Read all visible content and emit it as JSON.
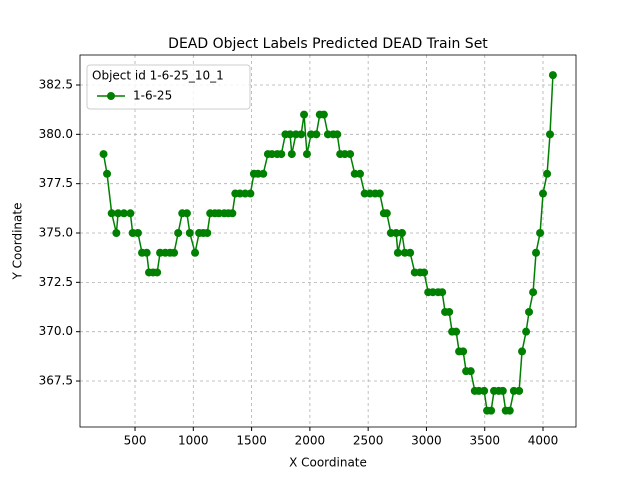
{
  "chart_data": {
    "type": "line",
    "title": "DEAD Object Labels Predicted DEAD Train Set",
    "x_label": "X Coordinate",
    "y_label": "Y Coordinate",
    "legend_title": "Object id 1-6-25_10_1",
    "legend_loc": "upper left",
    "grid": true,
    "x": [
      230,
      260,
      300,
      340,
      355,
      405,
      460,
      480,
      525,
      560,
      600,
      620,
      655,
      690,
      715,
      760,
      800,
      835,
      870,
      905,
      945,
      970,
      1015,
      1050,
      1085,
      1120,
      1145,
      1185,
      1220,
      1265,
      1300,
      1335,
      1360,
      1400,
      1445,
      1490,
      1520,
      1555,
      1600,
      1640,
      1675,
      1720,
      1755,
      1790,
      1830,
      1845,
      1880,
      1925,
      1950,
      1975,
      2010,
      2055,
      2085,
      2120,
      2155,
      2200,
      2235,
      2260,
      2300,
      2345,
      2385,
      2430,
      2470,
      2515,
      2560,
      2600,
      2635,
      2660,
      2695,
      2740,
      2755,
      2790,
      2815,
      2860,
      2900,
      2945,
      2980,
      3015,
      3055,
      3100,
      3135,
      3160,
      3195,
      3220,
      3255,
      3280,
      3315,
      3340,
      3380,
      3415,
      3450,
      3495,
      3520,
      3555,
      3580,
      3620,
      3655,
      3680,
      3715,
      3750,
      3795,
      3820,
      3855,
      3880,
      3915,
      3940,
      3975,
      4000,
      4035,
      4060,
      4085
    ],
    "series": [
      {
        "name": "1-6-25",
        "color": "#008000",
        "values": [
          379,
          378,
          376,
          375,
          376,
          376,
          376,
          375,
          375,
          374,
          374,
          373,
          373,
          373,
          374,
          374,
          374,
          374,
          375,
          376,
          376,
          375,
          374,
          375,
          375,
          375,
          376,
          376,
          376,
          376,
          376,
          376,
          377,
          377,
          377,
          377,
          378,
          378,
          378,
          379,
          379,
          379,
          379,
          380,
          380,
          379,
          380,
          380,
          381,
          379,
          380,
          380,
          381,
          381,
          380,
          380,
          380,
          379,
          379,
          379,
          378,
          378,
          377,
          377,
          377,
          377,
          376,
          376,
          375,
          375,
          374,
          375,
          374,
          374,
          373,
          373,
          373,
          372,
          372,
          372,
          372,
          371,
          371,
          370,
          370,
          369,
          369,
          368,
          368,
          367,
          367,
          367,
          366,
          366,
          367,
          367,
          367,
          366,
          366,
          367,
          367,
          369,
          370,
          371,
          372,
          374,
          375,
          377,
          378,
          380,
          383
        ]
      }
    ],
    "xlim": [
      28,
      4283
    ],
    "ylim": [
      365.17,
      384.02
    ],
    "xticks": [
      500,
      1000,
      1500,
      2000,
      2500,
      3000,
      3500,
      4000
    ],
    "yticks": [
      367.5,
      {
        "value": 370,
        "label": "370.0"
      },
      372.5,
      {
        "value": 375,
        "label": "375.0"
      },
      377.5,
      {
        "value": 380,
        "label": "380.0"
      },
      382.5
    ]
  }
}
